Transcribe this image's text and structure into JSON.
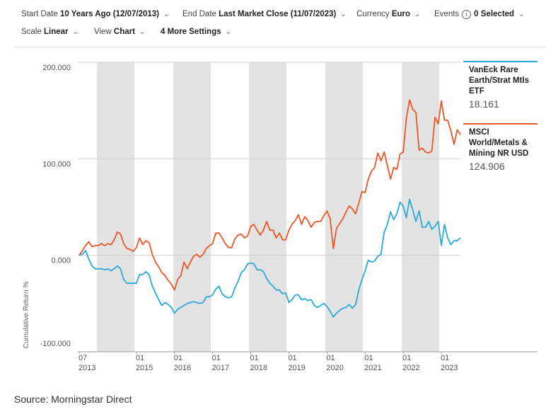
{
  "toolbar": [
    {
      "label": "Start Date",
      "value": "10 Years Ago (12/07/2013)"
    },
    {
      "label": "End Date",
      "value": "Last Market Close (11/07/2023)"
    },
    {
      "label": "Currency",
      "value": "Euro"
    },
    {
      "label": "Events",
      "value": "0 Selected"
    },
    {
      "label": "Scale",
      "value": "Linear"
    },
    {
      "label": "View",
      "value": "Chart"
    },
    {
      "value": "4 More Settings"
    }
  ],
  "chart_data": {
    "type": "line",
    "ylabel": "Cumulative Return %",
    "ylim": [
      -100,
      200
    ],
    "yticks": [
      {
        "value": 200,
        "label": "200.000"
      },
      {
        "value": 100,
        "label": "100.000"
      },
      {
        "value": 0,
        "label": "0.000"
      },
      {
        "value": -100,
        "label": "-100.000"
      }
    ],
    "xlim": [
      "2013-07",
      "2023-07"
    ],
    "xticks": [
      {
        "value": "2013-07",
        "label": [
          "07",
          "2013"
        ]
      },
      {
        "value": "2015-01",
        "label": [
          "01",
          "2015"
        ]
      },
      {
        "value": "2016-01",
        "label": [
          "01",
          "2016"
        ]
      },
      {
        "value": "2017-01",
        "label": [
          "01",
          "2017"
        ]
      },
      {
        "value": "2018-01",
        "label": [
          "01",
          "2018"
        ]
      },
      {
        "value": "2019-01",
        "label": [
          "01",
          "2019"
        ]
      },
      {
        "value": "2020-01",
        "label": [
          "01",
          "2020"
        ]
      },
      {
        "value": "2021-01",
        "label": [
          "01",
          "2021"
        ]
      },
      {
        "value": "2022-01",
        "label": [
          "01",
          "2022"
        ]
      },
      {
        "value": "2023-01",
        "label": [
          "01",
          "2023"
        ]
      }
    ],
    "grid": true,
    "x": [
      "2013-07",
      "2013-08",
      "2013-09",
      "2013-10",
      "2013-11",
      "2013-12",
      "2014-01",
      "2014-02",
      "2014-03",
      "2014-04",
      "2014-05",
      "2014-06",
      "2014-07",
      "2014-08",
      "2014-09",
      "2014-10",
      "2014-11",
      "2014-12",
      "2015-01",
      "2015-02",
      "2015-03",
      "2015-04",
      "2015-05",
      "2015-06",
      "2015-07",
      "2015-08",
      "2015-09",
      "2015-10",
      "2015-11",
      "2015-12",
      "2016-01",
      "2016-02",
      "2016-03",
      "2016-04",
      "2016-05",
      "2016-06",
      "2016-07",
      "2016-08",
      "2016-09",
      "2016-10",
      "2016-11",
      "2016-12",
      "2017-01",
      "2017-02",
      "2017-03",
      "2017-04",
      "2017-05",
      "2017-06",
      "2017-07",
      "2017-08",
      "2017-09",
      "2017-10",
      "2017-11",
      "2017-12",
      "2018-01",
      "2018-02",
      "2018-03",
      "2018-04",
      "2018-05",
      "2018-06",
      "2018-07",
      "2018-08",
      "2018-09",
      "2018-10",
      "2018-11",
      "2018-12",
      "2019-01",
      "2019-02",
      "2019-03",
      "2019-04",
      "2019-05",
      "2019-06",
      "2019-07",
      "2019-08",
      "2019-09",
      "2019-10",
      "2019-11",
      "2019-12",
      "2020-01",
      "2020-02",
      "2020-03",
      "2020-04",
      "2020-05",
      "2020-06",
      "2020-07",
      "2020-08",
      "2020-09",
      "2020-10",
      "2020-11",
      "2020-12",
      "2021-01",
      "2021-02",
      "2021-03",
      "2021-04",
      "2021-05",
      "2021-06",
      "2021-07",
      "2021-08",
      "2021-09",
      "2021-10",
      "2021-11",
      "2021-12",
      "2022-01",
      "2022-02",
      "2022-03",
      "2022-04",
      "2022-05",
      "2022-06",
      "2022-07",
      "2022-08",
      "2022-09",
      "2022-10",
      "2022-11",
      "2022-12",
      "2023-01",
      "2023-02",
      "2023-03",
      "2023-04",
      "2023-05",
      "2023-06",
      "2023-07"
    ],
    "series": [
      {
        "name": "VanEck Rare Earth/Strat Mtls ETF",
        "color": "#29a9de",
        "last_value": 18.161,
        "values": [
          0,
          1,
          5,
          -4,
          -11,
          -14,
          -14,
          -14,
          -15,
          -14,
          -16,
          -14,
          -11,
          -14,
          -25,
          -29,
          -29,
          -29,
          -29,
          -20,
          -20,
          -17,
          -20,
          -32,
          -39,
          -46,
          -52,
          -49,
          -51,
          -54,
          -60,
          -56,
          -54,
          -52,
          -50,
          -49,
          -48,
          -49,
          -50,
          -49,
          -43,
          -43,
          -41,
          -35,
          -32,
          -40,
          -43,
          -44,
          -43,
          -34,
          -27,
          -18,
          -15,
          -9,
          -8,
          -9,
          -15,
          -15,
          -17,
          -24,
          -29,
          -32,
          -36,
          -36,
          -40,
          -39,
          -49,
          -46,
          -41,
          -41,
          -46,
          -45,
          -47,
          -46,
          -52,
          -54,
          -52,
          -50,
          -53,
          -58,
          -64,
          -60,
          -57,
          -55,
          -54,
          -51,
          -55,
          -51,
          -36,
          -25,
          -16,
          -5,
          -7,
          -6,
          -1,
          1,
          24,
          32,
          45,
          37,
          43,
          55,
          51,
          39,
          58,
          47,
          35,
          46,
          29,
          29,
          35,
          27,
          30,
          35,
          10,
          32,
          18,
          11,
          15,
          15,
          18.161
        ]
      },
      {
        "name": "MSCI World/Metals & Mining NR USD",
        "color": "#f05526",
        "last_value": 124.906,
        "values": [
          0,
          5,
          10,
          14,
          9,
          10,
          10,
          12,
          10,
          12,
          11,
          16,
          24,
          22,
          12,
          7,
          6,
          4,
          8,
          18,
          11,
          15,
          13,
          1,
          -7,
          -12,
          -18,
          -21,
          -26,
          -30,
          -36,
          -25,
          -21,
          -7,
          -14,
          -7,
          -1,
          1,
          -2,
          1,
          7,
          10,
          12,
          23,
          23,
          18,
          12,
          8,
          8,
          17,
          21,
          22,
          18,
          20,
          30,
          32,
          26,
          21,
          26,
          35,
          26,
          26,
          18,
          23,
          16,
          16,
          26,
          32,
          36,
          42,
          32,
          40,
          36,
          29,
          34,
          35,
          35,
          41,
          46,
          38,
          7,
          28,
          33,
          38,
          45,
          51,
          48,
          43,
          54,
          66,
          65,
          79,
          87,
          91,
          106,
          98,
          107,
          93,
          79,
          91,
          89,
          105,
          107,
          142,
          161,
          151,
          148,
          109,
          111,
          107,
          106,
          108,
          143,
          136,
          160,
          140,
          140,
          129,
          115,
          130,
          124.906
        ]
      }
    ]
  },
  "source": "Source: Morningstar Direct"
}
